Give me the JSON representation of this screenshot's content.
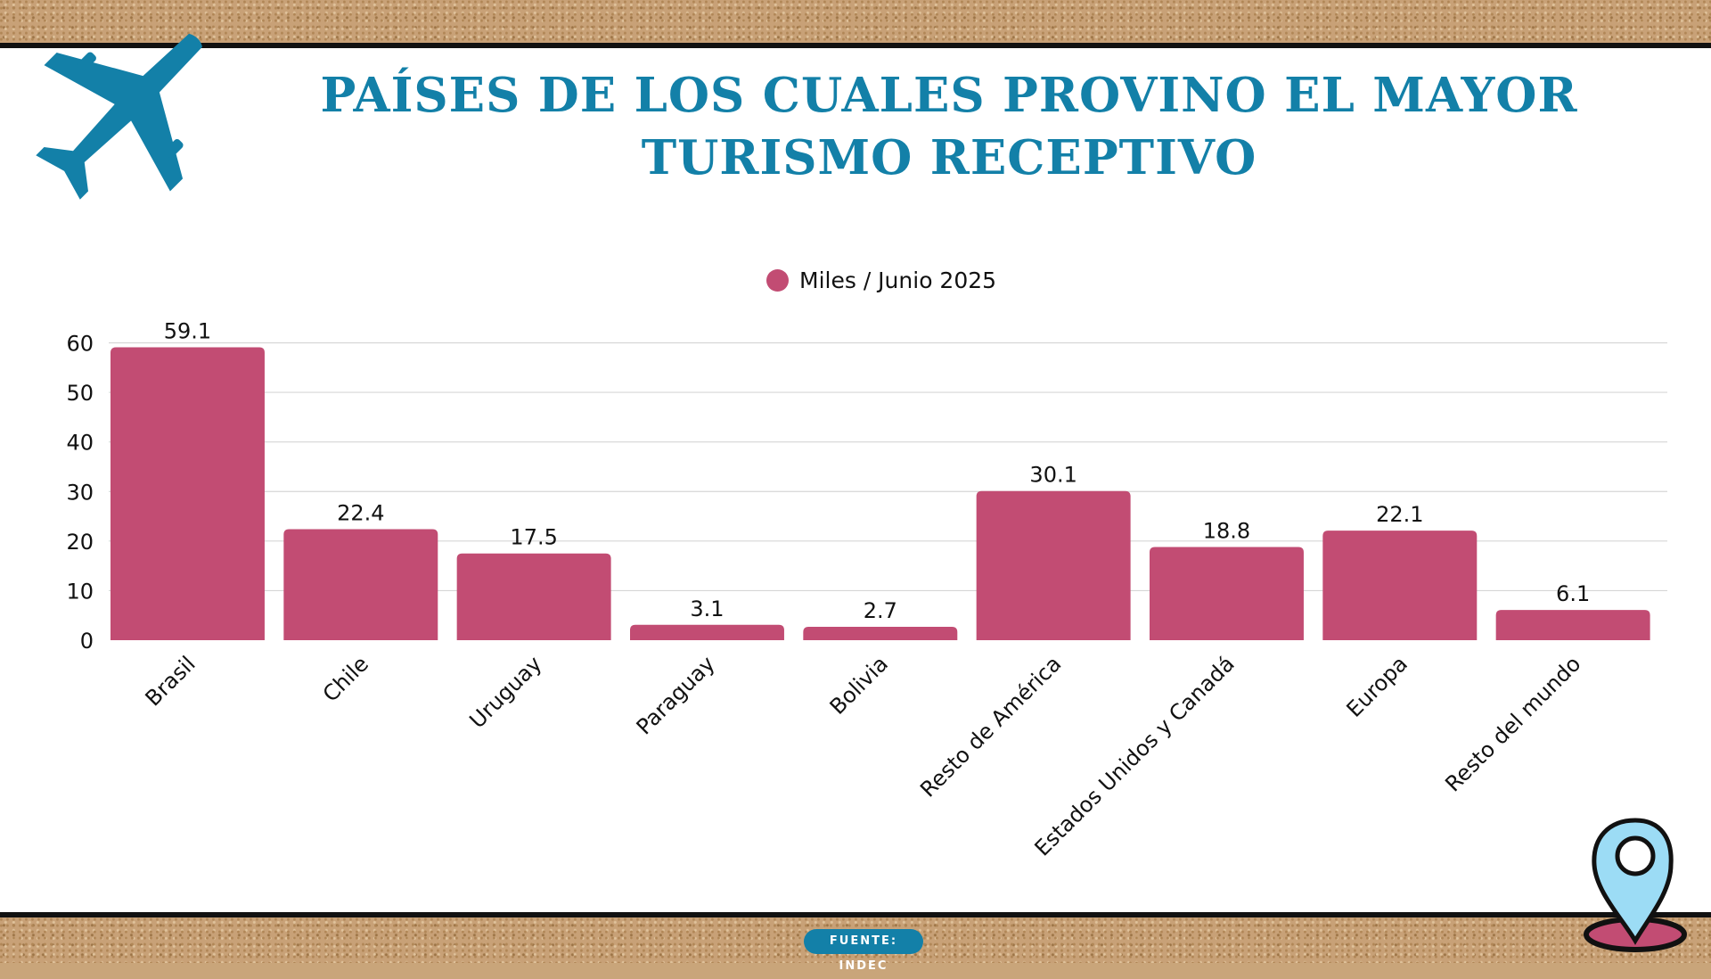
{
  "title_lines": [
    "PAÍSES DE LOS CUALES PROVINO EL MAYOR",
    "TURISMO RECEPTIVO"
  ],
  "source_badge": "FUENTE: INDEC",
  "icons": [
    "airplane-icon",
    "map-pin-icon"
  ],
  "colors": {
    "bar": "#c24c73",
    "title": "#1380a8",
    "badge": "#1380a8"
  },
  "chart_data": {
    "type": "bar",
    "categories": [
      "Brasil",
      "Chile",
      "Uruguay",
      "Paraguay",
      "Bolivia",
      "Resto de América",
      "Estados Unidos y Canadá",
      "Europa",
      "Resto del mundo"
    ],
    "series": [
      {
        "name": "Miles / Junio 2025",
        "values": [
          59.1,
          22.4,
          17.5,
          3.1,
          2.7,
          30.1,
          18.8,
          22.1,
          6.1
        ]
      }
    ],
    "ylim": [
      0,
      60
    ],
    "yticks": [
      0,
      10,
      20,
      30,
      40,
      50,
      60
    ],
    "grid": true,
    "legend": "top-center",
    "data_labels": true
  }
}
